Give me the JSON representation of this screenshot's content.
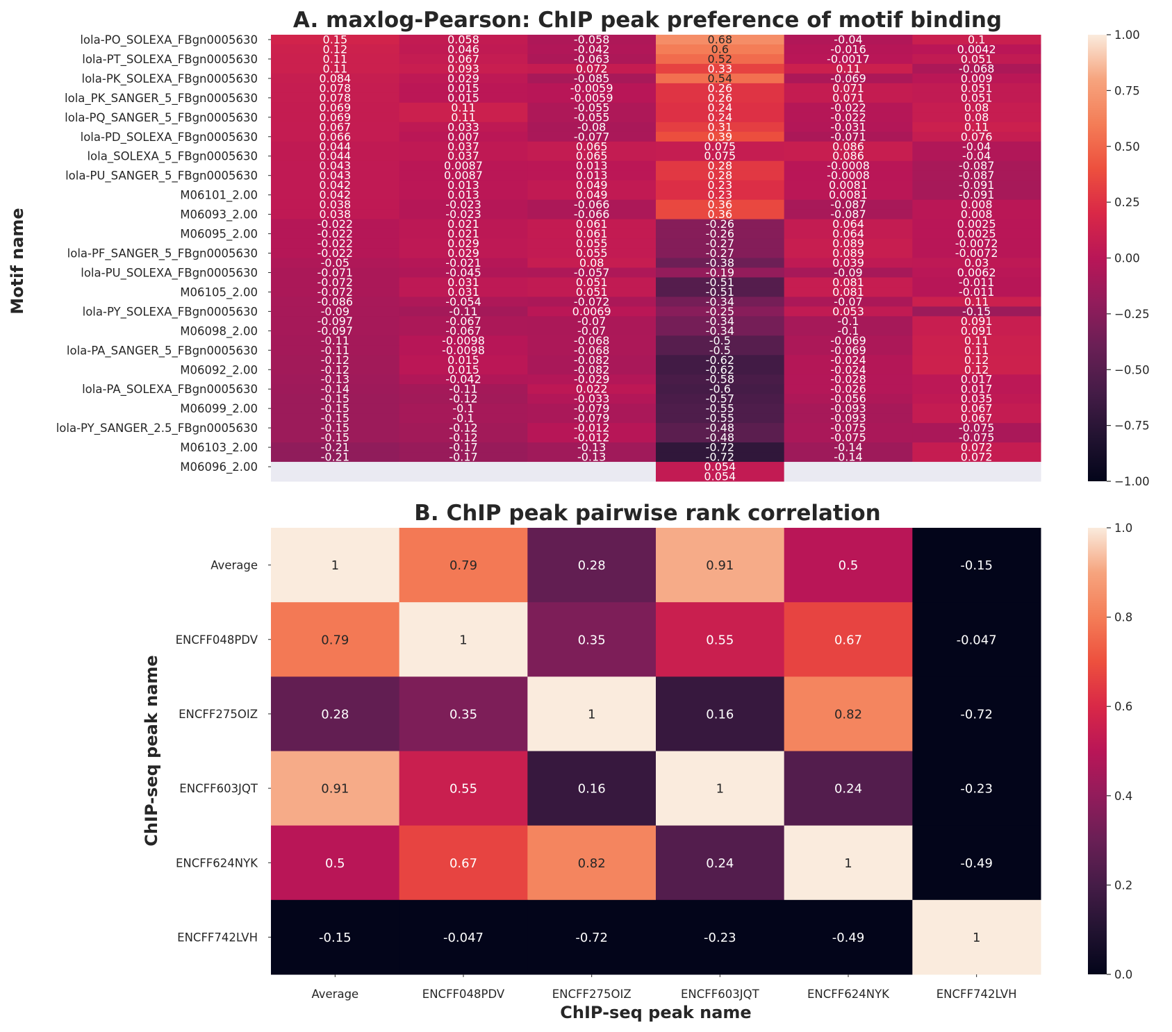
{
  "chart_data": [
    {
      "type": "heatmap",
      "title": "A. maxlog-Pearson: ChIP peak preference of motif binding",
      "xlabel": "",
      "ylabel": "Motif name",
      "columns": [
        "Average",
        "ENCFF048PDV",
        "ENCFF275OIZ",
        "ENCFF603JQT",
        "ENCFF624NYK",
        "ENCFF742LVH"
      ],
      "y_tick_labels": [
        "lola-PO_SOLEXA_FBgn0005630",
        "lola-PT_SOLEXA_FBgn0005630",
        "lola-PK_SOLEXA_FBgn0005630",
        "lola_PK_SANGER_5_FBgn0005630",
        "lola-PQ_SANGER_5_FBgn0005630",
        "lola-PD_SOLEXA_FBgn0005630",
        "lola_SOLEXA_5_FBgn0005630",
        "lola-PU_SANGER_5_FBgn0005630",
        "M06101_2.00",
        "M06093_2.00",
        "M06095_2.00",
        "lola-PF_SANGER_5_FBgn0005630",
        "lola-PU_SOLEXA_FBgn0005630",
        "M06105_2.00",
        "lola-PY_SOLEXA_FBgn0005630",
        "M06098_2.00",
        "lola-PA_SANGER_5_FBgn0005630",
        "M06092_2.00",
        "lola-PA_SOLEXA_FBgn0005630",
        "M06099_2.00",
        "lola-PY_SANGER_2.5_FBgn0005630",
        "M06103_2.00",
        "M06096_2.00"
      ],
      "values": [
        [
          0.15,
          0.058,
          -0.058,
          0.68,
          -0.04,
          0.1
        ],
        [
          0.12,
          0.046,
          -0.042,
          0.6,
          -0.016,
          0.0042
        ],
        [
          0.11,
          0.067,
          -0.063,
          0.52,
          -0.0017,
          0.051
        ],
        [
          0.11,
          0.093,
          0.072,
          0.33,
          0.11,
          -0.068
        ],
        [
          0.084,
          0.029,
          -0.085,
          0.54,
          -0.069,
          0.009
        ],
        [
          0.078,
          0.015,
          -0.0059,
          0.26,
          0.071,
          0.051
        ],
        [
          0.078,
          0.015,
          -0.0059,
          0.26,
          0.071,
          0.051
        ],
        [
          0.069,
          0.11,
          -0.055,
          0.24,
          -0.022,
          0.08
        ],
        [
          0.069,
          0.11,
          -0.055,
          0.24,
          -0.022,
          0.08
        ],
        [
          0.067,
          0.033,
          -0.08,
          0.31,
          -0.031,
          0.11
        ],
        [
          0.066,
          0.007,
          -0.077,
          0.39,
          -0.071,
          0.076
        ],
        [
          0.044,
          0.037,
          0.065,
          0.075,
          0.086,
          -0.04
        ],
        [
          0.044,
          0.037,
          0.065,
          0.075,
          0.086,
          -0.04
        ],
        [
          0.043,
          0.0087,
          0.013,
          0.28,
          -0.0008,
          -0.087
        ],
        [
          0.043,
          0.0087,
          0.013,
          0.28,
          -0.0008,
          -0.087
        ],
        [
          0.042,
          0.013,
          0.049,
          0.23,
          0.0081,
          -0.091
        ],
        [
          0.042,
          0.013,
          0.049,
          0.23,
          0.0081,
          -0.091
        ],
        [
          0.038,
          -0.023,
          -0.066,
          0.36,
          -0.087,
          0.008
        ],
        [
          0.038,
          -0.023,
          -0.066,
          0.36,
          -0.087,
          0.008
        ],
        [
          -0.022,
          0.021,
          0.061,
          -0.26,
          0.064,
          0.0025
        ],
        [
          -0.022,
          0.021,
          0.061,
          -0.26,
          0.064,
          0.0025
        ],
        [
          -0.022,
          0.029,
          0.055,
          -0.27,
          0.089,
          -0.0072
        ],
        [
          -0.022,
          0.029,
          0.055,
          -0.27,
          0.089,
          -0.0072
        ],
        [
          -0.05,
          -0.021,
          0.08,
          -0.38,
          0.039,
          0.03
        ],
        [
          -0.071,
          -0.045,
          -0.057,
          -0.19,
          -0.09,
          0.0062
        ],
        [
          -0.072,
          0.031,
          0.051,
          -0.51,
          0.081,
          -0.011
        ],
        [
          -0.072,
          0.031,
          0.051,
          -0.51,
          0.081,
          -0.011
        ],
        [
          -0.086,
          -0.054,
          -0.072,
          -0.34,
          -0.07,
          0.11
        ],
        [
          -0.09,
          -0.11,
          0.0069,
          -0.25,
          0.053,
          -0.15
        ],
        [
          -0.097,
          -0.067,
          -0.07,
          -0.34,
          -0.1,
          0.091
        ],
        [
          -0.097,
          -0.067,
          -0.07,
          -0.34,
          -0.1,
          0.091
        ],
        [
          -0.11,
          -0.0098,
          -0.068,
          -0.5,
          -0.069,
          0.11
        ],
        [
          -0.11,
          -0.0098,
          -0.068,
          -0.5,
          -0.069,
          0.11
        ],
        [
          -0.12,
          0.015,
          -0.082,
          -0.62,
          -0.024,
          0.12
        ],
        [
          -0.12,
          0.015,
          -0.082,
          -0.62,
          -0.024,
          0.12
        ],
        [
          -0.13,
          -0.042,
          -0.029,
          -0.58,
          -0.028,
          0.017
        ],
        [
          -0.14,
          -0.11,
          0.022,
          -0.6,
          -0.026,
          0.017
        ],
        [
          -0.15,
          -0.12,
          -0.033,
          -0.57,
          -0.056,
          0.035
        ],
        [
          -0.15,
          -0.1,
          -0.079,
          -0.55,
          -0.093,
          0.067
        ],
        [
          -0.15,
          -0.1,
          -0.079,
          -0.55,
          -0.093,
          0.067
        ],
        [
          -0.15,
          -0.12,
          -0.012,
          -0.48,
          -0.075,
          -0.075
        ],
        [
          -0.15,
          -0.12,
          -0.012,
          -0.48,
          -0.075,
          -0.075
        ],
        [
          -0.21,
          -0.17,
          -0.13,
          -0.72,
          -0.14,
          0.072
        ],
        [
          -0.21,
          -0.17,
          -0.13,
          -0.72,
          -0.14,
          0.072
        ],
        [
          null,
          null,
          null,
          0.054,
          null,
          null
        ],
        [
          null,
          null,
          null,
          0.054,
          null,
          null
        ]
      ],
      "colorbar": {
        "min": -1.0,
        "max": 1.0,
        "ticks": [
          "1.00",
          "0.75",
          "0.50",
          "0.25",
          "0.00",
          "−0.25",
          "−0.50",
          "−0.75",
          "−1.00"
        ]
      },
      "colormap": "rocket",
      "missing_color": "#eaeaf2"
    },
    {
      "type": "heatmap",
      "title": "B. ChIP peak pairwise rank correlation",
      "xlabel": "ChIP-seq peak name",
      "ylabel": "ChIP-seq peak name",
      "columns": [
        "Average",
        "ENCFF048PDV",
        "ENCFF275OIZ",
        "ENCFF603JQT",
        "ENCFF624NYK",
        "ENCFF742LVH"
      ],
      "rows": [
        "Average",
        "ENCFF048PDV",
        "ENCFF275OIZ",
        "ENCFF603JQT",
        "ENCFF624NYK",
        "ENCFF742LVH"
      ],
      "values": [
        [
          1,
          0.79,
          0.28,
          0.91,
          0.5,
          -0.15
        ],
        [
          0.79,
          1,
          0.35,
          0.55,
          0.67,
          -0.047
        ],
        [
          0.28,
          0.35,
          1,
          0.16,
          0.82,
          -0.72
        ],
        [
          0.91,
          0.55,
          0.16,
          1,
          0.24,
          -0.23
        ],
        [
          0.5,
          0.67,
          0.82,
          0.24,
          1,
          -0.49
        ],
        [
          -0.15,
          -0.047,
          -0.72,
          -0.23,
          -0.49,
          1
        ]
      ],
      "colorbar": {
        "min": 0.0,
        "max": 1.0,
        "ticks": [
          "1.0",
          "0.8",
          "0.6",
          "0.4",
          "0.2",
          "0.0"
        ]
      },
      "colormap": "rocket"
    }
  ]
}
